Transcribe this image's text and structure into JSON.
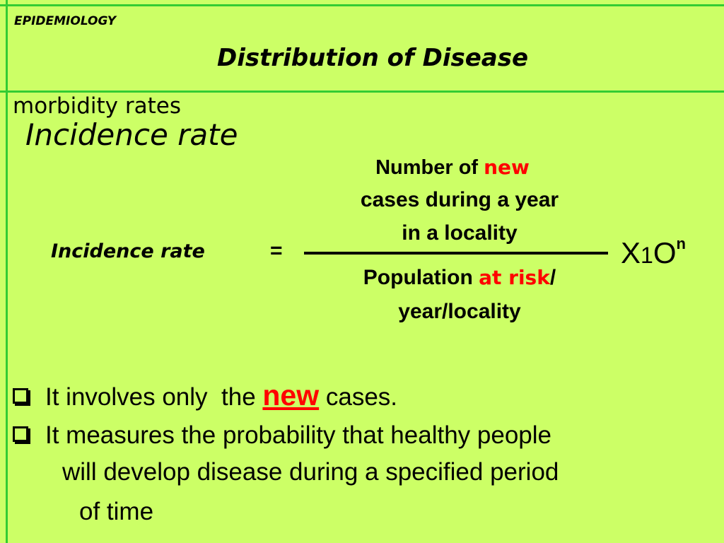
{
  "header": {
    "label": "EPIDEMIOLOGY",
    "title": "Distribution of Disease"
  },
  "section": {
    "label": "morbidity rates",
    "subtitle": "Incidence rate"
  },
  "formula": {
    "lhs": "Incidence rate",
    "equals": "=",
    "numerator": {
      "line1_prefix": "Number of ",
      "line1_emphasis": "new",
      "line2": "cases during a year",
      "line3": "in a locality"
    },
    "denominator": {
      "line1_prefix": "Population ",
      "line1_emphasis": "at risk",
      "line1_suffix": "/",
      "line2": "year/locality"
    },
    "multiplier": {
      "x": "X",
      "one": "1",
      "zero": "O",
      "exponent": "n"
    }
  },
  "bullets": {
    "item1": {
      "prefix": "It involves only  the ",
      "emphasis": "new",
      "suffix": " cases."
    },
    "item2": {
      "line1": "It measures the probability that healthy people",
      "line2": "will develop disease during a specified period",
      "line3": "of time"
    }
  },
  "colors": {
    "background": "#ccff66",
    "rule": "#33cc33",
    "emphasis": "#ff0000"
  }
}
